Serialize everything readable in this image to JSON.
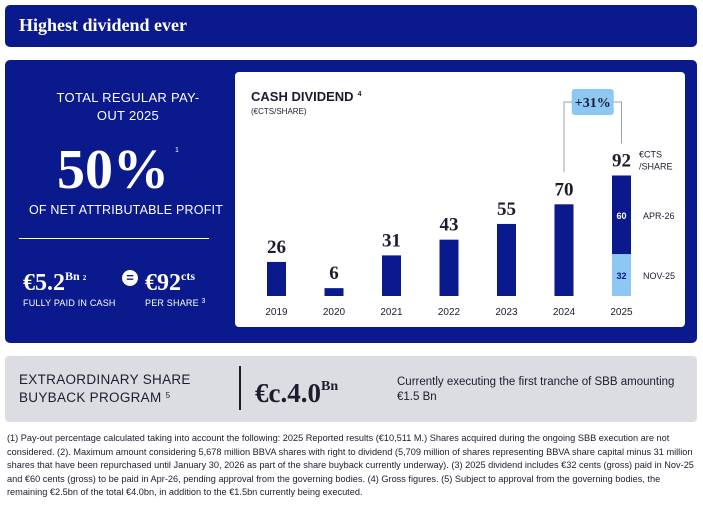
{
  "header": {
    "title": "Highest dividend ever"
  },
  "payout": {
    "heading": "TOTAL REGULAR PAY-OUT 2025",
    "value": "50%",
    "value_note": "1",
    "subtitle": "OF NET ATTRIBUTABLE PROFIT",
    "cash_value": "€5.2",
    "cash_unit": "Bn",
    "cash_note": "2",
    "equals": "=",
    "per_share_value": "€92",
    "per_share_unit": "cts",
    "cash_caption": "FULLY PAID IN CASH",
    "per_share_caption": "PER SHARE",
    "per_share_note": "3"
  },
  "chart_data": {
    "type": "bar",
    "title": "CASH DIVIDEND",
    "title_note": "4",
    "subtitle": "(€CTS/SHARE)",
    "categories": [
      "2019",
      "2020",
      "2021",
      "2022",
      "2023",
      "2024",
      "2025"
    ],
    "values": [
      26,
      6,
      31,
      43,
      55,
      70,
      92
    ],
    "value_labels": [
      "26",
      "6",
      "31",
      "43",
      "55",
      "70",
      "92"
    ],
    "stacked_last": [
      {
        "name": "NOV-25",
        "value": 32
      },
      {
        "name": "APR-26",
        "value": 60
      }
    ],
    "last_unit_label": [
      "€CTS",
      "/SHARE"
    ],
    "growth_label": "+31%",
    "growth_note": "",
    "ylim": [
      0,
      100
    ],
    "colors": {
      "bar": "#0a1a8c",
      "highlight": "#8dc8f4",
      "text": "#1c1c2e"
    }
  },
  "buyback": {
    "label_line1": "EXTRAORDINARY SHARE",
    "label_line2": "BUYBACK PROGRAM",
    "label_note": "5",
    "value": "€c.4.0",
    "value_unit": "Bn",
    "description": "Currently executing the first tranche of SBB amounting €1.5 Bn"
  },
  "footnotes": "(1) Pay-out percentage calculated taking into account the following: 2025 Reported results (€10,511 M.) Shares acquired during the ongoing SBB execution are not considered. (2). Maximum amount considering 5,678 million BBVA shares with right to dividend (5,709 million of shares representing BBVA share capital minus 31 million shares that have been repurchased until January 30, 2026 as part of the share buyback currently underway). (3) 2025 dividend includes €32 cents (gross) paid in Nov-25 and €60 cents (gross) to be paid in Apr-26, pending approval from the governing bodies. (4) Gross figures. (5) Subject to approval from the governing bodies, the remaining €2.5bn of the total €4.0bn, in addition to the €1.5bn currently being executed."
}
